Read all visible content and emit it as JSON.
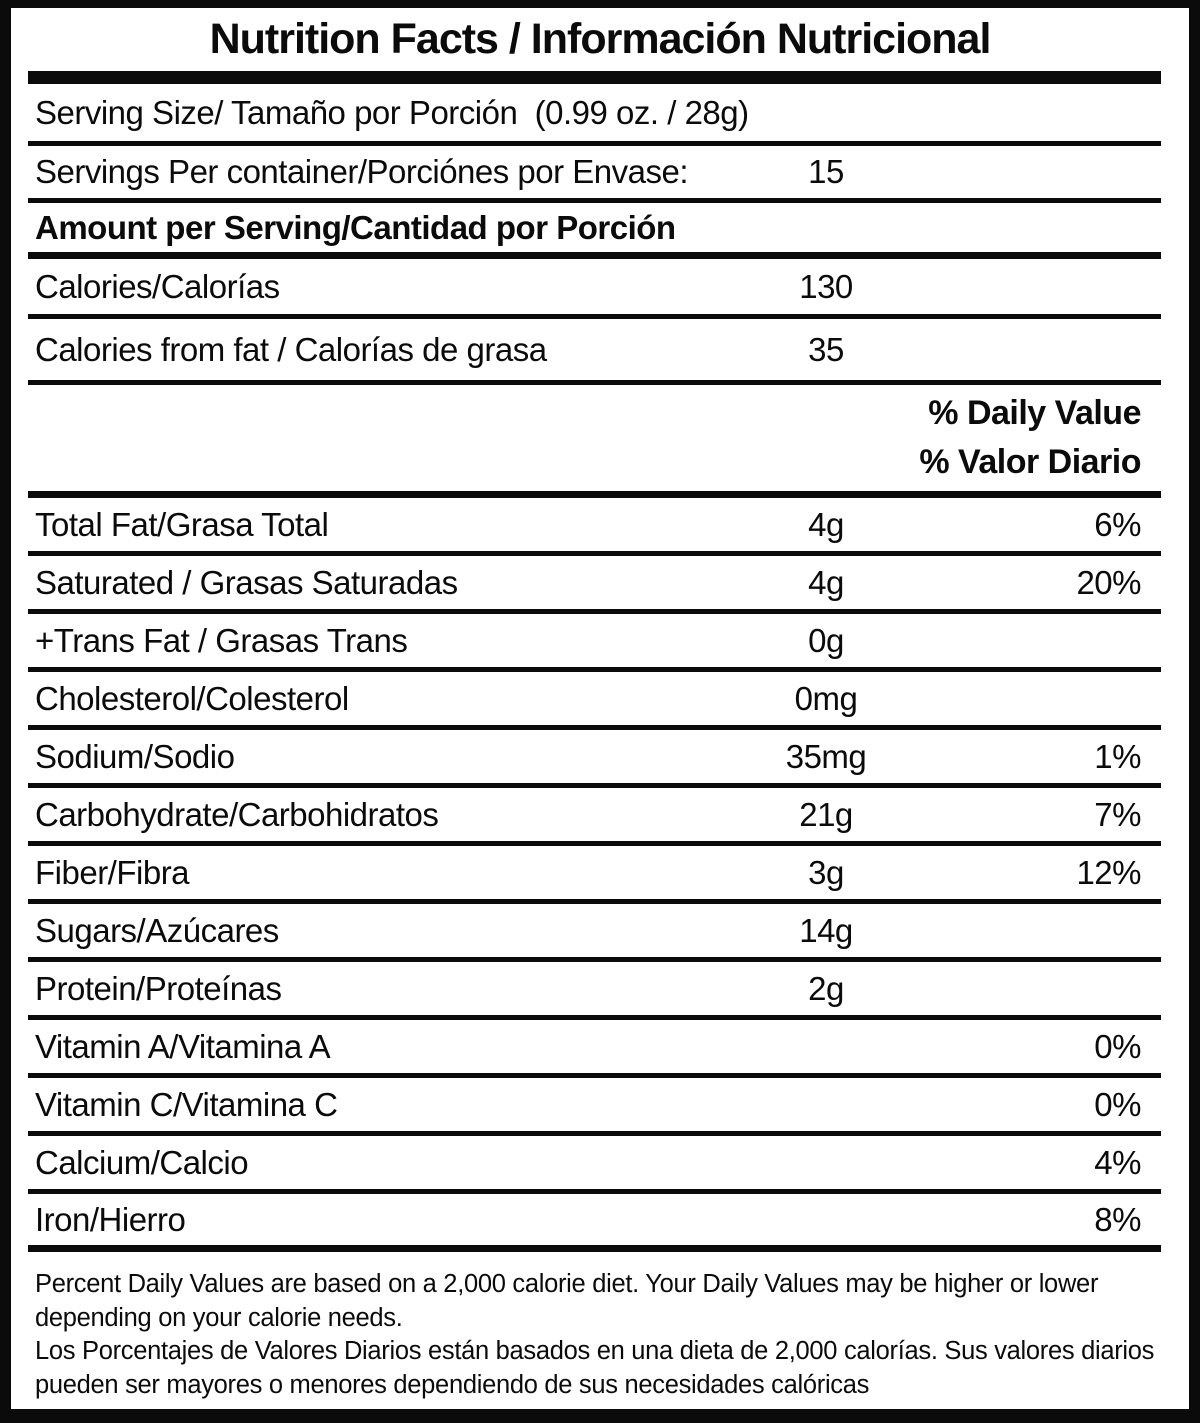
{
  "title": "Nutrition Facts / Información Nutricional",
  "serving": {
    "serving_size": "Serving Size/ Tamaño por Porción  (0.99 oz. / 28g)",
    "servings_per_container_label": "Servings Per container/Porciónes por Envase:",
    "servings_per_container_value": "15",
    "amount_per_serving": "Amount per Serving/Cantidad por Porción"
  },
  "calories": [
    {
      "label": "Calories/Calorías",
      "amount": "130"
    },
    {
      "label": "Calories from fat / Calorías de grasa",
      "amount": "35"
    }
  ],
  "daily_value_header": {
    "line1": "% Daily Value",
    "line2": "% Valor Diario"
  },
  "nutrients": [
    {
      "label": "Total Fat/Grasa Total",
      "amount": "4g",
      "dv": "6%"
    },
    {
      "label": "Saturated / Grasas Saturadas",
      "amount": "4g",
      "dv": "20%"
    },
    {
      "label": "+Trans Fat / Grasas Trans",
      "amount": "0g",
      "dv": ""
    },
    {
      "label": "Cholesterol/Colesterol",
      "amount": "0mg",
      "dv": ""
    },
    {
      "label": "Sodium/Sodio",
      "amount": "35mg",
      "dv": "1%"
    },
    {
      "label": "Carbohydrate/Carbohidratos",
      "amount": "21g",
      "dv": "7%"
    },
    {
      "label": "Fiber/Fibra",
      "amount": "3g",
      "dv": "12%"
    },
    {
      "label": "Sugars/Azúcares",
      "amount": "14g",
      "dv": ""
    },
    {
      "label": "Protein/Proteínas",
      "amount": "2g",
      "dv": ""
    }
  ],
  "vitamins": [
    {
      "label": "Vitamin A/Vitamina A",
      "dv": "0%"
    },
    {
      "label": "Vitamin C/Vitamina C",
      "dv": "0%"
    },
    {
      "label": "Calcium/Calcio",
      "dv": "4%"
    },
    {
      "label": "Iron/Hierro",
      "dv": "8%"
    }
  ],
  "footnote": {
    "english": "Percent Daily Values are based on a 2,000 calorie diet. Your Daily Values may be higher or lower depending on your calorie needs.",
    "spanish": "Los Porcentajes de Valores Diarios están basados en una dieta de 2,000 calorías. Sus valores diarios pueden ser mayores o menores dependiendo de sus necesidades calóricas"
  },
  "colors": {
    "text": "#0b0b0b",
    "background": "#ffffff"
  }
}
